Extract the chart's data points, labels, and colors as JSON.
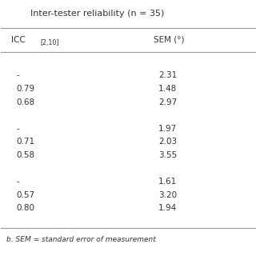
{
  "title": "Inter-tester reliability (n = 35)",
  "col1_header": "ICC",
  "col1_subscript": "[2,10]",
  "col2_header": "SEM (°)",
  "rows": [
    [
      "",
      ""
    ],
    [
      "-",
      "2.31"
    ],
    [
      "0.79",
      "1.48"
    ],
    [
      "0.68",
      "2.97"
    ],
    [
      "",
      ""
    ],
    [
      "-",
      "1.97"
    ],
    [
      "0.71",
      "2.03"
    ],
    [
      "0.58",
      "3.55"
    ],
    [
      "",
      ""
    ],
    [
      "-",
      "1.61"
    ],
    [
      "0.57",
      "3.20"
    ],
    [
      "0.80",
      "1.94"
    ],
    [
      "",
      ""
    ]
  ],
  "footnote": "b. SEM = standard error of measurement",
  "text_color": "#333333",
  "line_color": "#999999",
  "font_size": 7.5,
  "header_font_size": 7.5,
  "title_font_size": 8.0,
  "footnote_font_size": 6.5
}
